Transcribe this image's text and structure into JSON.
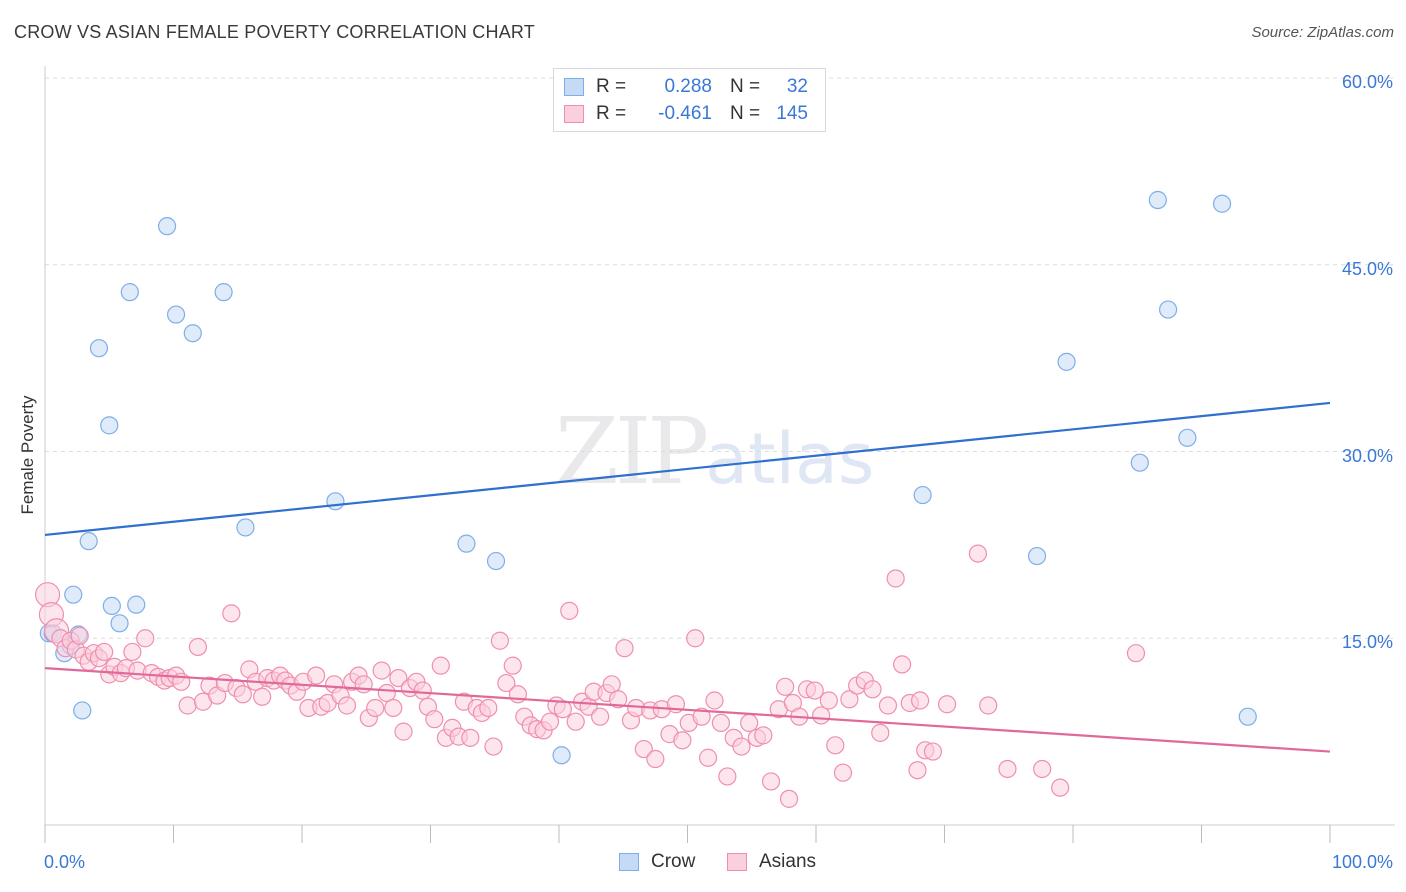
{
  "title": "CROW VS ASIAN FEMALE POVERTY CORRELATION CHART",
  "source": "Source: ZipAtlas.com",
  "watermark": {
    "zip": "ZIP",
    "atlas": "atlas"
  },
  "stats": [
    {
      "r_label": "R =",
      "r_value": "0.288",
      "n_label": "N =",
      "n_value": "32",
      "color": "#7eaee8",
      "fill": "#c5daf4"
    },
    {
      "r_label": "R =",
      "r_value": "-0.461",
      "n_label": "N =",
      "n_value": "145",
      "color": "#ef8fae",
      "fill": "#fbd0de"
    }
  ],
  "legend": [
    {
      "label": "Crow",
      "color": "#7eaee8",
      "fill": "#c5daf4"
    },
    {
      "label": "Asians",
      "color": "#ef8fae",
      "fill": "#fbd0de"
    }
  ],
  "chart_data": {
    "type": "scatter",
    "xlabel": "",
    "ylabel": "Female Poverty",
    "xlim": [
      0,
      100
    ],
    "ylim": [
      0,
      60
    ],
    "x_tick_labels": [
      "0.0%",
      "100.0%"
    ],
    "y_tick_labels": [
      "15.0%",
      "30.0%",
      "45.0%",
      "60.0%"
    ],
    "y_ticks": [
      15,
      30,
      45,
      60
    ],
    "grid": true,
    "series": [
      {
        "name": "Crow",
        "color": "#7eaee8",
        "fill": "#c5daf4",
        "line_color": "#2f6fce",
        "trend": [
          [
            0,
            23.3
          ],
          [
            100,
            33.9
          ]
        ],
        "points": [
          [
            0.3,
            15.4
          ],
          [
            0.6,
            15.4
          ],
          [
            1.5,
            13.8
          ],
          [
            2.0,
            14.4
          ],
          [
            2.2,
            18.5
          ],
          [
            2.6,
            15.3
          ],
          [
            2.9,
            9.2
          ],
          [
            3.4,
            22.8
          ],
          [
            4.2,
            38.3
          ],
          [
            5.0,
            32.1
          ],
          [
            5.2,
            17.6
          ],
          [
            5.8,
            16.2
          ],
          [
            6.6,
            42.8
          ],
          [
            7.1,
            17.7
          ],
          [
            9.5,
            48.1
          ],
          [
            10.2,
            41.0
          ],
          [
            11.5,
            39.5
          ],
          [
            13.9,
            42.8
          ],
          [
            15.6,
            23.9
          ],
          [
            22.6,
            26.0
          ],
          [
            32.8,
            22.6
          ],
          [
            35.1,
            21.2
          ],
          [
            40.2,
            5.6
          ],
          [
            68.3,
            26.5
          ],
          [
            77.2,
            21.6
          ],
          [
            79.5,
            37.2
          ],
          [
            85.2,
            29.1
          ],
          [
            86.6,
            50.2
          ],
          [
            87.4,
            41.4
          ],
          [
            88.9,
            31.1
          ],
          [
            91.6,
            49.9
          ],
          [
            93.6,
            8.7
          ]
        ]
      },
      {
        "name": "Asians",
        "color": "#ef8fae",
        "fill": "#fbd0de",
        "line_color": "#e0699a",
        "trend": [
          [
            0,
            12.6
          ],
          [
            100,
            5.9
          ]
        ],
        "points": [
          [
            0.2,
            18.5
          ],
          [
            0.5,
            16.9
          ],
          [
            0.9,
            15.6
          ],
          [
            1.2,
            15.0
          ],
          [
            1.6,
            14.2
          ],
          [
            2.0,
            14.8
          ],
          [
            2.4,
            14.1
          ],
          [
            2.7,
            15.2
          ],
          [
            3.0,
            13.6
          ],
          [
            3.4,
            13.1
          ],
          [
            3.8,
            13.8
          ],
          [
            4.2,
            13.4
          ],
          [
            4.6,
            13.9
          ],
          [
            5.0,
            12.1
          ],
          [
            5.4,
            12.7
          ],
          [
            5.9,
            12.2
          ],
          [
            6.3,
            12.6
          ],
          [
            6.8,
            13.9
          ],
          [
            7.2,
            12.4
          ],
          [
            7.8,
            15.0
          ],
          [
            8.3,
            12.2
          ],
          [
            8.8,
            11.9
          ],
          [
            9.3,
            11.6
          ],
          [
            9.7,
            11.8
          ],
          [
            10.2,
            12.0
          ],
          [
            10.6,
            11.5
          ],
          [
            11.1,
            9.6
          ],
          [
            11.9,
            14.3
          ],
          [
            12.3,
            9.9
          ],
          [
            12.8,
            11.2
          ],
          [
            13.4,
            10.4
          ],
          [
            14.0,
            11.4
          ],
          [
            14.5,
            17.0
          ],
          [
            14.9,
            11.0
          ],
          [
            15.4,
            10.5
          ],
          [
            15.9,
            12.5
          ],
          [
            16.4,
            11.5
          ],
          [
            16.9,
            10.3
          ],
          [
            17.3,
            11.8
          ],
          [
            17.8,
            11.6
          ],
          [
            18.3,
            12.0
          ],
          [
            18.7,
            11.6
          ],
          [
            19.1,
            11.2
          ],
          [
            19.6,
            10.7
          ],
          [
            20.1,
            11.5
          ],
          [
            20.5,
            9.4
          ],
          [
            21.1,
            12.0
          ],
          [
            21.5,
            9.5
          ],
          [
            22.0,
            9.8
          ],
          [
            22.5,
            11.3
          ],
          [
            23.0,
            10.4
          ],
          [
            23.5,
            9.6
          ],
          [
            23.9,
            11.5
          ],
          [
            24.4,
            12.0
          ],
          [
            24.8,
            11.3
          ],
          [
            25.2,
            8.6
          ],
          [
            25.7,
            9.4
          ],
          [
            26.2,
            12.4
          ],
          [
            26.6,
            10.6
          ],
          [
            27.1,
            9.4
          ],
          [
            27.5,
            11.8
          ],
          [
            27.9,
            7.5
          ],
          [
            28.4,
            11.0
          ],
          [
            28.9,
            11.5
          ],
          [
            29.4,
            10.8
          ],
          [
            29.8,
            9.5
          ],
          [
            30.3,
            8.5
          ],
          [
            30.8,
            12.8
          ],
          [
            31.2,
            7.0
          ],
          [
            31.7,
            7.8
          ],
          [
            32.2,
            7.1
          ],
          [
            32.6,
            9.9
          ],
          [
            33.1,
            7.0
          ],
          [
            33.6,
            9.4
          ],
          [
            34.0,
            9.0
          ],
          [
            34.5,
            9.4
          ],
          [
            34.9,
            6.3
          ],
          [
            35.4,
            14.8
          ],
          [
            35.9,
            11.4
          ],
          [
            36.4,
            12.8
          ],
          [
            36.8,
            10.5
          ],
          [
            37.3,
            8.7
          ],
          [
            37.8,
            8.0
          ],
          [
            38.3,
            7.7
          ],
          [
            38.8,
            7.6
          ],
          [
            39.3,
            8.3
          ],
          [
            39.8,
            9.6
          ],
          [
            40.3,
            9.3
          ],
          [
            40.8,
            17.2
          ],
          [
            41.3,
            8.3
          ],
          [
            41.8,
            9.9
          ],
          [
            42.3,
            9.5
          ],
          [
            42.7,
            10.7
          ],
          [
            43.2,
            8.7
          ],
          [
            43.7,
            10.6
          ],
          [
            44.1,
            11.3
          ],
          [
            44.6,
            10.1
          ],
          [
            45.1,
            14.2
          ],
          [
            45.6,
            8.4
          ],
          [
            46.0,
            9.4
          ],
          [
            46.6,
            6.1
          ],
          [
            47.1,
            9.2
          ],
          [
            47.5,
            5.3
          ],
          [
            48.0,
            9.3
          ],
          [
            48.6,
            7.3
          ],
          [
            49.1,
            9.7
          ],
          [
            49.6,
            6.8
          ],
          [
            50.1,
            8.2
          ],
          [
            50.6,
            15.0
          ],
          [
            51.1,
            8.7
          ],
          [
            51.6,
            5.4
          ],
          [
            52.1,
            10.0
          ],
          [
            52.6,
            8.2
          ],
          [
            53.1,
            3.9
          ],
          [
            53.6,
            7.0
          ],
          [
            54.2,
            6.3
          ],
          [
            54.8,
            8.2
          ],
          [
            55.4,
            7.0
          ],
          [
            55.9,
            7.2
          ],
          [
            56.5,
            3.5
          ],
          [
            57.1,
            9.3
          ],
          [
            57.6,
            11.1
          ],
          [
            58.2,
            9.8
          ],
          [
            58.7,
            8.7
          ],
          [
            59.3,
            10.9
          ],
          [
            59.9,
            10.8
          ],
          [
            60.4,
            8.8
          ],
          [
            61.0,
            10.0
          ],
          [
            61.5,
            6.4
          ],
          [
            62.1,
            4.2
          ],
          [
            62.6,
            10.1
          ],
          [
            63.2,
            11.2
          ],
          [
            63.8,
            11.6
          ],
          [
            64.4,
            10.9
          ],
          [
            65.0,
            7.4
          ],
          [
            65.6,
            9.6
          ],
          [
            66.2,
            19.8
          ],
          [
            66.7,
            12.9
          ],
          [
            67.3,
            9.8
          ],
          [
            67.9,
            4.4
          ],
          [
            68.5,
            6.0
          ],
          [
            69.1,
            5.9
          ],
          [
            70.2,
            9.7
          ],
          [
            72.6,
            21.8
          ],
          [
            74.9,
            4.5
          ],
          [
            77.6,
            4.5
          ],
          [
            79.0,
            3.0
          ],
          [
            84.9,
            13.8
          ],
          [
            57.9,
            2.1
          ],
          [
            68.1,
            10.0
          ],
          [
            73.4,
            9.6
          ]
        ]
      }
    ]
  }
}
